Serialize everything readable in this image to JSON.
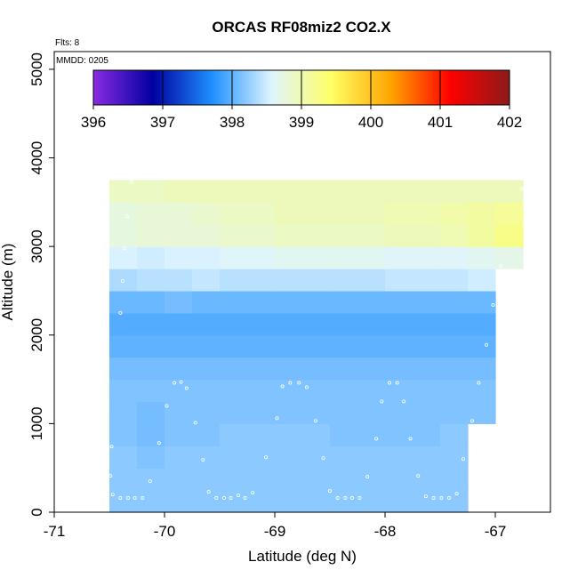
{
  "chart_data": {
    "type": "heatmap",
    "title": "ORCAS RF08miz2 CO2.X",
    "annotations": {
      "flights": "Flts: 8",
      "date": "MMDD: 0205"
    },
    "xlabel": "Latitude (deg N)",
    "ylabel": "Altitude (m)",
    "xlim": [
      -71,
      -66.5
    ],
    "ylim": [
      0,
      5200
    ],
    "x_ticks": [
      -71,
      -70,
      -69,
      -68,
      -67
    ],
    "y_ticks": [
      0,
      1000,
      2000,
      3000,
      4000,
      5000
    ],
    "colorbar": {
      "range": [
        396,
        402
      ],
      "ticks": [
        396,
        397,
        398,
        399,
        400,
        401,
        402
      ],
      "colors": [
        "#8a2be2",
        "#0000a0",
        "#1e90ff",
        "#dff5ff",
        "#ffff66",
        "#ffa500",
        "#ff0000",
        "#8b1a1a"
      ]
    },
    "grid": false,
    "legend_position": "top-inside",
    "cells": {
      "x_edges": [
        -70.5,
        -70.25,
        -70.0,
        -69.75,
        -69.5,
        -69.0,
        -68.5,
        -68.0,
        -67.5,
        -67.25,
        -67.0,
        -66.75
      ],
      "row_height": 250,
      "rows": [
        {
          "alt": 0,
          "values": [
            398.2,
            398.2,
            398.2,
            398.2,
            398.2,
            398.2,
            398.2,
            398.2,
            398.2,
            null,
            null
          ]
        },
        {
          "alt": 250,
          "values": [
            398.2,
            398.2,
            398.2,
            398.2,
            398.2,
            398.2,
            398.2,
            398.2,
            398.2,
            null,
            null
          ]
        },
        {
          "alt": 500,
          "values": [
            398.2,
            398.15,
            398.2,
            398.2,
            398.2,
            398.2,
            398.2,
            398.2,
            398.2,
            null,
            null
          ]
        },
        {
          "alt": 750,
          "values": [
            398.15,
            398.1,
            398.15,
            398.15,
            398.2,
            398.2,
            398.15,
            398.15,
            398.2,
            null,
            null
          ]
        },
        {
          "alt": 1000,
          "values": [
            398.15,
            398.1,
            398.15,
            398.15,
            398.15,
            398.15,
            398.15,
            398.15,
            398.15,
            398.15,
            null
          ]
        },
        {
          "alt": 1250,
          "values": [
            398.15,
            398.15,
            398.15,
            398.15,
            398.15,
            398.15,
            398.15,
            398.15,
            398.15,
            398.15,
            null
          ]
        },
        {
          "alt": 1500,
          "values": [
            398.1,
            398.1,
            398.1,
            398.1,
            398.1,
            398.1,
            398.1,
            398.1,
            398.1,
            398.1,
            null
          ]
        },
        {
          "alt": 1750,
          "values": [
            398.0,
            398.0,
            398.0,
            398.0,
            398.0,
            398.0,
            398.0,
            398.0,
            398.0,
            398.0,
            null
          ]
        },
        {
          "alt": 2000,
          "values": [
            397.95,
            397.95,
            397.95,
            397.95,
            397.95,
            397.95,
            397.95,
            397.95,
            397.95,
            397.95,
            null
          ]
        },
        {
          "alt": 2250,
          "values": [
            398.05,
            398.05,
            398.1,
            398.05,
            398.05,
            398.05,
            398.05,
            398.05,
            398.05,
            398.05,
            null
          ]
        },
        {
          "alt": 2500,
          "values": [
            398.35,
            398.4,
            398.4,
            398.45,
            398.4,
            398.4,
            398.4,
            398.45,
            398.45,
            398.5,
            null
          ]
        },
        {
          "alt": 2750,
          "values": [
            398.55,
            398.5,
            398.55,
            398.55,
            398.6,
            398.65,
            398.65,
            398.6,
            398.6,
            398.65,
            398.7
          ]
        },
        {
          "alt": 3000,
          "values": [
            398.75,
            398.8,
            398.8,
            398.8,
            398.85,
            398.9,
            398.9,
            398.95,
            399.0,
            399.1,
            399.25
          ]
        },
        {
          "alt": 3250,
          "values": [
            398.75,
            398.8,
            398.8,
            398.85,
            398.9,
            398.95,
            398.95,
            399.0,
            399.05,
            399.1,
            399.15
          ]
        },
        {
          "alt": 3500,
          "values": [
            398.9,
            398.9,
            398.95,
            398.95,
            398.95,
            398.95,
            398.95,
            398.95,
            398.95,
            398.95,
            398.95
          ]
        }
      ]
    },
    "points": [
      [
        -70.48,
        740
      ],
      [
        -70.49,
        410
      ],
      [
        -70.47,
        200
      ],
      [
        -70.4,
        160
      ],
      [
        -70.33,
        160
      ],
      [
        -70.27,
        160
      ],
      [
        -70.2,
        160
      ],
      [
        -70.13,
        350
      ],
      [
        -70.05,
        780
      ],
      [
        -69.98,
        1200
      ],
      [
        -69.91,
        1460
      ],
      [
        -69.85,
        1470
      ],
      [
        -69.8,
        1400
      ],
      [
        -69.72,
        1010
      ],
      [
        -69.65,
        590
      ],
      [
        -69.6,
        230
      ],
      [
        -69.53,
        160
      ],
      [
        -69.46,
        160
      ],
      [
        -69.4,
        160
      ],
      [
        -69.33,
        190
      ],
      [
        -69.27,
        160
      ],
      [
        -69.2,
        220
      ],
      [
        -69.08,
        620
      ],
      [
        -68.98,
        1060
      ],
      [
        -68.93,
        1420
      ],
      [
        -68.86,
        1460
      ],
      [
        -68.78,
        1460
      ],
      [
        -68.71,
        1410
      ],
      [
        -68.63,
        1030
      ],
      [
        -68.56,
        610
      ],
      [
        -68.5,
        240
      ],
      [
        -68.43,
        160
      ],
      [
        -68.36,
        160
      ],
      [
        -68.3,
        160
      ],
      [
        -68.23,
        160
      ],
      [
        -68.16,
        400
      ],
      [
        -68.08,
        830
      ],
      [
        -68.03,
        1250
      ],
      [
        -67.96,
        1460
      ],
      [
        -67.89,
        1460
      ],
      [
        -67.83,
        1250
      ],
      [
        -67.77,
        830
      ],
      [
        -67.7,
        410
      ],
      [
        -67.63,
        180
      ],
      [
        -67.56,
        160
      ],
      [
        -67.49,
        160
      ],
      [
        -67.42,
        160
      ],
      [
        -67.35,
        210
      ],
      [
        -67.29,
        600
      ],
      [
        -67.21,
        1030
      ],
      [
        -67.15,
        1460
      ],
      [
        -67.08,
        1890
      ],
      [
        -67.02,
        2340
      ],
      [
        -66.95,
        2780
      ],
      [
        -66.76,
        3650
      ],
      [
        -70.3,
        3730
      ],
      [
        -70.34,
        3340
      ],
      [
        -70.36,
        2980
      ],
      [
        -70.38,
        2610
      ],
      [
        -70.4,
        2250
      ]
    ]
  }
}
